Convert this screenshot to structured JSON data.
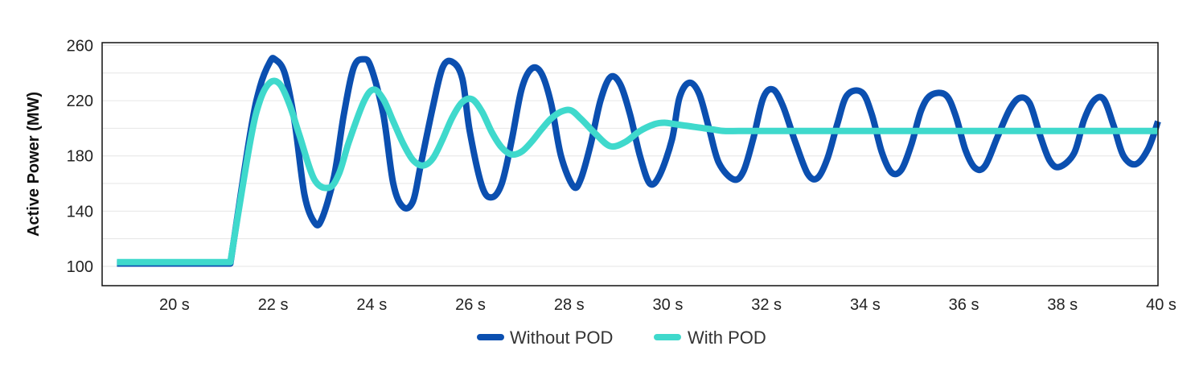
{
  "chart_data": {
    "type": "line",
    "title": "",
    "xlabel": "",
    "ylabel": "Active Power (MW)",
    "xlim": [
      18.6,
      40
    ],
    "ylim": [
      86,
      262
    ],
    "x_ticks": [
      {
        "value": 20,
        "label": "20 s"
      },
      {
        "value": 22,
        "label": "22 s"
      },
      {
        "value": 24,
        "label": "24 s"
      },
      {
        "value": 26,
        "label": "26 s"
      },
      {
        "value": 28,
        "label": "28 s"
      },
      {
        "value": 30,
        "label": "30 s"
      },
      {
        "value": 32,
        "label": "32 s"
      },
      {
        "value": 34,
        "label": "34 s"
      },
      {
        "value": 36,
        "label": "36 s"
      },
      {
        "value": 38,
        "label": "38 s"
      },
      {
        "value": 40,
        "label": "40 s"
      }
    ],
    "y_ticks": [
      {
        "value": 100,
        "label": "100"
      },
      {
        "value": 140,
        "label": "140"
      },
      {
        "value": 180,
        "label": "180"
      },
      {
        "value": 220,
        "label": "220"
      },
      {
        "value": 260,
        "label": "260"
      }
    ],
    "grid": true,
    "legend_position": "bottom-center",
    "series": [
      {
        "name": "Without POD",
        "color": "#0b4fb0",
        "x": [
          18.9,
          20.8,
          21.2,
          21.6,
          21.8,
          22.0,
          22.1,
          22.3,
          22.5,
          22.7,
          22.9,
          23.05,
          23.3,
          23.5,
          23.7,
          23.9,
          24.05,
          24.3,
          24.5,
          24.7,
          24.9,
          25.05,
          25.3,
          25.5,
          25.7,
          25.9,
          26.05,
          26.3,
          26.5,
          26.7,
          26.9,
          27.1,
          27.3,
          27.5,
          27.7,
          27.9,
          28.15,
          28.3,
          28.5,
          28.7,
          28.9,
          29.1,
          29.3,
          29.5,
          29.7,
          29.9,
          30.15,
          30.3,
          30.5,
          30.7,
          30.9,
          31.1,
          31.4,
          31.6,
          31.8,
          32.0,
          32.2,
          32.4,
          32.65,
          32.9,
          33.1,
          33.3,
          33.5,
          33.7,
          34.0,
          34.2,
          34.4,
          34.6,
          34.8,
          35.0,
          35.2,
          35.4,
          35.7,
          35.9,
          36.1,
          36.3,
          36.5,
          36.75,
          37.0,
          37.2,
          37.4,
          37.6,
          37.8,
          38.0,
          38.3,
          38.5,
          38.7,
          38.9,
          39.1,
          39.3,
          39.55,
          39.8,
          40.0
        ],
        "y": [
          102,
          102,
          102,
          196,
          230,
          248,
          250,
          240,
          205,
          152,
          132,
          134,
          165,
          210,
          244,
          250,
          244,
          210,
          160,
          143,
          147,
          172,
          215,
          244,
          248,
          236,
          198,
          158,
          150,
          160,
          191,
          228,
          243,
          240,
          218,
          180,
          158,
          163,
          188,
          220,
          237,
          232,
          210,
          180,
          160,
          166,
          192,
          222,
          233,
          225,
          200,
          175,
          163,
          169,
          193,
          222,
          228,
          216,
          190,
          167,
          164,
          178,
          203,
          224,
          226,
          210,
          183,
          168,
          170,
          188,
          213,
          224,
          224,
          209,
          184,
          171,
          173,
          194,
          214,
          222,
          218,
          196,
          177,
          172,
          182,
          206,
          220,
          221,
          202,
          180,
          174,
          185,
          205
        ]
      },
      {
        "name": "With POD",
        "color": "#3fd9cc",
        "x": [
          18.9,
          20.8,
          21.2,
          21.6,
          21.8,
          22.0,
          22.2,
          22.4,
          22.6,
          22.9,
          23.2,
          23.4,
          23.6,
          23.9,
          24.1,
          24.3,
          24.5,
          24.7,
          24.9,
          25.1,
          25.3,
          25.5,
          25.7,
          25.9,
          26.1,
          26.3,
          26.5,
          26.7,
          26.9,
          27.1,
          27.3,
          27.5,
          27.7,
          27.9,
          28.1,
          28.3,
          28.6,
          28.9,
          29.2,
          29.5,
          29.8,
          30.0,
          30.2,
          30.4,
          30.6,
          30.8,
          31.0,
          31.2,
          31.5,
          31.8,
          32.2,
          40.0
        ],
        "y": [
          103,
          103,
          103,
          190,
          220,
          233,
          232,
          217,
          195,
          163,
          157,
          167,
          190,
          219,
          228,
          221,
          205,
          189,
          177,
          173,
          178,
          192,
          208,
          219,
          221,
          212,
          197,
          186,
          181,
          183,
          190,
          199,
          207,
          212,
          213,
          207,
          196,
          187,
          190,
          198,
          203,
          204,
          203,
          202,
          201,
          200,
          199,
          198,
          198,
          198,
          198,
          198
        ]
      }
    ]
  }
}
